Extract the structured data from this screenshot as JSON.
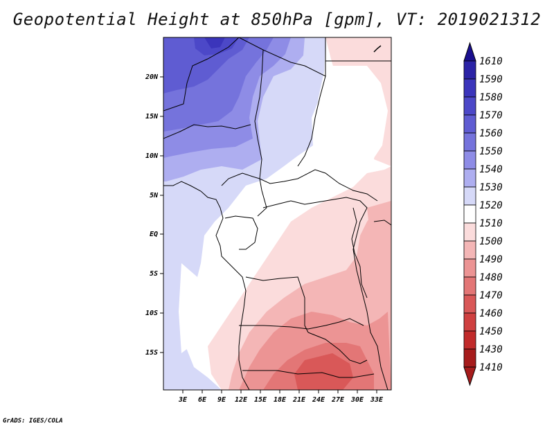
{
  "title": "Geopotential Height at 850hPa [gpm], VT: 2019021312",
  "credit": "GrADS: IGES/COLA",
  "map": {
    "variable": "Geopotential Height at 850hPa",
    "units": "gpm",
    "valid_time": "2019021312",
    "lat_labels": [
      "20N",
      "15N",
      "10N",
      "5N",
      "EQ",
      "5S",
      "10S",
      "15S"
    ],
    "lon_labels": [
      "3E",
      "6E",
      "9E",
      "12E",
      "15E",
      "18E",
      "21E",
      "24E",
      "27E",
      "30E",
      "33E"
    ]
  },
  "colorbar": {
    "labels": [
      "1610",
      "1590",
      "1580",
      "1570",
      "1560",
      "1550",
      "1540",
      "1530",
      "1520",
      "1510",
      "1500",
      "1490",
      "1480",
      "1470",
      "1460",
      "1450",
      "1430",
      "1410"
    ],
    "colors": [
      "#1a0f8f",
      "#2b23a6",
      "#3b35bb",
      "#4c48c8",
      "#5f5cd2",
      "#7573dc",
      "#8e8ce6",
      "#aeaef0",
      "#d6d9f8",
      "#ffffff",
      "#fbdcdc",
      "#f4b6b6",
      "#ec9494",
      "#e37676",
      "#d95858",
      "#cf4040",
      "#c12b2b",
      "#a61c1c"
    ]
  }
}
